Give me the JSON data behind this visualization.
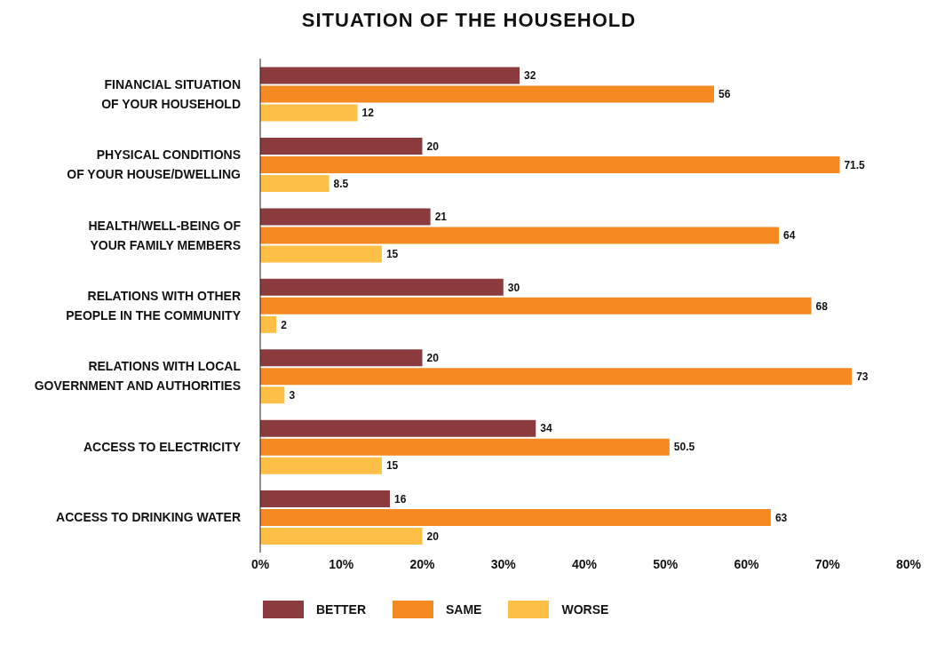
{
  "chart_data": {
    "type": "bar",
    "orientation": "horizontal",
    "title": "SITUATION OF THE HOUSEHOLD",
    "categories": [
      "FINANCIAL SITUATION OF YOUR HOUSEHOLD",
      "PHYSICAL CONDITIONS OF YOUR HOUSE/DWELLING",
      "HEALTH/WELL-BEING OF YOUR FAMILY MEMBERS",
      "RELATIONS WITH OTHER PEOPLE IN THE COMMUNITY",
      "RELATIONS WITH LOCAL GOVERNMENT AND AUTHORITIES",
      "ACCESS TO ELECTRICITY",
      "ACCESS TO DRINKING WATER"
    ],
    "series": [
      {
        "name": "BETTER",
        "color": "#8b3a3e",
        "values": [
          32,
          20,
          21,
          30,
          20,
          34,
          16
        ]
      },
      {
        "name": "SAME",
        "color": "#f58a23",
        "values": [
          56,
          71.5,
          64,
          68,
          73,
          50.5,
          63
        ]
      },
      {
        "name": "WORSE",
        "color": "#fdbf46",
        "values": [
          12,
          8.5,
          15,
          2,
          3,
          15,
          20
        ]
      }
    ],
    "xlim": [
      0,
      80
    ],
    "xticks": [
      {
        "value": 0,
        "label": "0%"
      },
      {
        "value": 10,
        "label": "10%"
      },
      {
        "value": 20,
        "label": "20%"
      },
      {
        "value": 30,
        "label": "30%"
      },
      {
        "value": 40,
        "label": "40%"
      },
      {
        "value": 50,
        "label": "50%"
      },
      {
        "value": 60,
        "label": "60%"
      },
      {
        "value": 70,
        "label": "70%"
      },
      {
        "value": 80,
        "label": "80%"
      }
    ],
    "data_labels": true,
    "grid": false,
    "legend": "bottom"
  }
}
